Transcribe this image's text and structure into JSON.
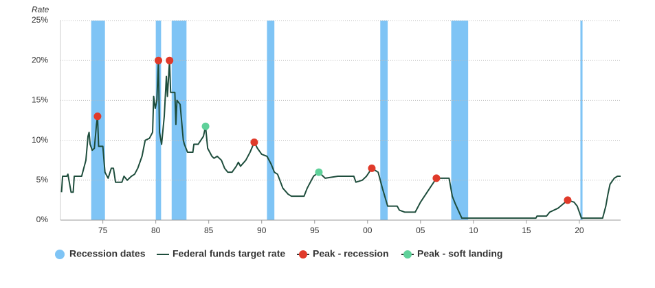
{
  "chart_data": {
    "type": "line",
    "y_label": "Rate",
    "xlim": [
      1971,
      2023.9
    ],
    "ylim": [
      0,
      25
    ],
    "xticks": [
      {
        "value": 1975,
        "label": "75"
      },
      {
        "value": 1980,
        "label": "80"
      },
      {
        "value": 1985,
        "label": "85"
      },
      {
        "value": 1990,
        "label": "90"
      },
      {
        "value": 1995,
        "label": "95"
      },
      {
        "value": 2000,
        "label": "00"
      },
      {
        "value": 2005,
        "label": "05"
      },
      {
        "value": 2010,
        "label": "10"
      },
      {
        "value": 2015,
        "label": "15"
      },
      {
        "value": 2020,
        "label": "20"
      }
    ],
    "yticks": [
      {
        "value": 0,
        "label": "0%"
      },
      {
        "value": 5,
        "label": "5%"
      },
      {
        "value": 10,
        "label": "10%"
      },
      {
        "value": 15,
        "label": "15%"
      },
      {
        "value": 20,
        "label": "20%"
      },
      {
        "value": 25,
        "label": "25%"
      }
    ],
    "grid": true,
    "recessions": {
      "name": "Recession dates",
      "color": "#7fc4f5",
      "x_ranges": [
        [
          1973.9,
          1975.2
        ],
        [
          1980.0,
          1980.5
        ],
        [
          1981.5,
          1982.9
        ],
        [
          1990.5,
          1991.2
        ],
        [
          2001.2,
          2001.9
        ],
        [
          2007.9,
          2009.5
        ],
        [
          2020.1,
          2020.3
        ]
      ]
    },
    "series": [
      {
        "name": "Federal funds target rate",
        "color": "#1e4d3c",
        "style": "line",
        "x": [
          1971.1,
          1971.2,
          1971.6,
          1971.7,
          1971.8,
          1972.0,
          1972.2,
          1972.3,
          1973.0,
          1973.2,
          1973.4,
          1973.6,
          1973.7,
          1973.8,
          1974.0,
          1974.2,
          1974.4,
          1974.5,
          1974.6,
          1975.0,
          1975.2,
          1975.5,
          1975.8,
          1976.0,
          1976.2,
          1976.8,
          1977.0,
          1977.3,
          1977.7,
          1978.0,
          1978.3,
          1978.7,
          1979.0,
          1979.4,
          1979.7,
          1979.8,
          1979.95,
          1980.1,
          1980.25,
          1980.35,
          1980.55,
          1980.8,
          1981.0,
          1981.1,
          1981.3,
          1981.4,
          1981.8,
          1981.9,
          1982.0,
          1982.3,
          1982.6,
          1982.7,
          1983.0,
          1983.5,
          1983.6,
          1984.0,
          1984.5,
          1984.7,
          1984.9,
          1985.3,
          1985.5,
          1985.8,
          1986.2,
          1986.5,
          1986.8,
          1987.2,
          1987.6,
          1987.8,
          1988.0,
          1988.5,
          1988.9,
          1989.3,
          1989.6,
          1990.0,
          1990.5,
          1990.9,
          1991.2,
          1991.5,
          1992.0,
          1992.5,
          1992.8,
          1994.0,
          1994.3,
          1994.6,
          1994.9,
          1995.4,
          1995.6,
          1996.0,
          1997.2,
          1998.7,
          1998.9,
          1999.5,
          1999.9,
          2000.4,
          2001.0,
          2001.4,
          2001.9,
          2002.8,
          2003.0,
          2003.5,
          2004.5,
          2005.0,
          2006.5,
          2007.7,
          2008.0,
          2008.3,
          2008.9,
          2015.9,
          2016.0,
          2016.9,
          2017.2,
          2018.0,
          2018.9,
          2019.5,
          2019.8,
          2020.2,
          2022.2,
          2022.5,
          2022.7,
          2022.9,
          2023.3,
          2023.6,
          2023.9
        ],
        "values": [
          3.5,
          5.5,
          5.5,
          5.75,
          5,
          3.5,
          3.5,
          5.5,
          5.5,
          6.5,
          7.5,
          10.5,
          11,
          9.5,
          8.75,
          9,
          12,
          13,
          9.25,
          9.25,
          6,
          5.25,
          6.5,
          6.5,
          4.75,
          4.75,
          5.5,
          5,
          5.5,
          5.75,
          6.5,
          8,
          10,
          10.25,
          11,
          15.5,
          14,
          15,
          20,
          11,
          9.5,
          13,
          18,
          15.5,
          20,
          16,
          16,
          12,
          15,
          14.5,
          10,
          9.5,
          8.5,
          8.5,
          9.5,
          9.5,
          10.5,
          11.75,
          9,
          8,
          7.75,
          8,
          7.5,
          6.5,
          6,
          6,
          6.75,
          7.25,
          6.75,
          7.5,
          8.5,
          9.75,
          9,
          8.25,
          8,
          7,
          6,
          5.75,
          4,
          3.25,
          3,
          3,
          4,
          4.75,
          5.5,
          6,
          5.75,
          5.25,
          5.5,
          5.5,
          4.75,
          5,
          5.5,
          6.5,
          6,
          4,
          1.75,
          1.75,
          1.25,
          1,
          1,
          2.25,
          5.25,
          5.25,
          3,
          2,
          0.25,
          0.25,
          0.5,
          0.5,
          1,
          1.5,
          2.5,
          2.25,
          1.75,
          0.25,
          0.25,
          1.75,
          3.25,
          4.5,
          5.25,
          5.5,
          5.5
        ]
      },
      {
        "name": "Peak - recession",
        "color": "#e03a2a",
        "style": "points",
        "x": [
          1974.5,
          1980.25,
          1981.3,
          1989.3,
          2000.4,
          2006.5,
          2018.9
        ],
        "values": [
          13,
          20,
          20,
          9.75,
          6.5,
          5.25,
          2.5
        ]
      },
      {
        "name": "Peak - soft landing",
        "color": "#5fd19a",
        "style": "points",
        "x": [
          1984.7,
          1995.4
        ],
        "values": [
          11.75,
          6
        ]
      }
    ]
  }
}
